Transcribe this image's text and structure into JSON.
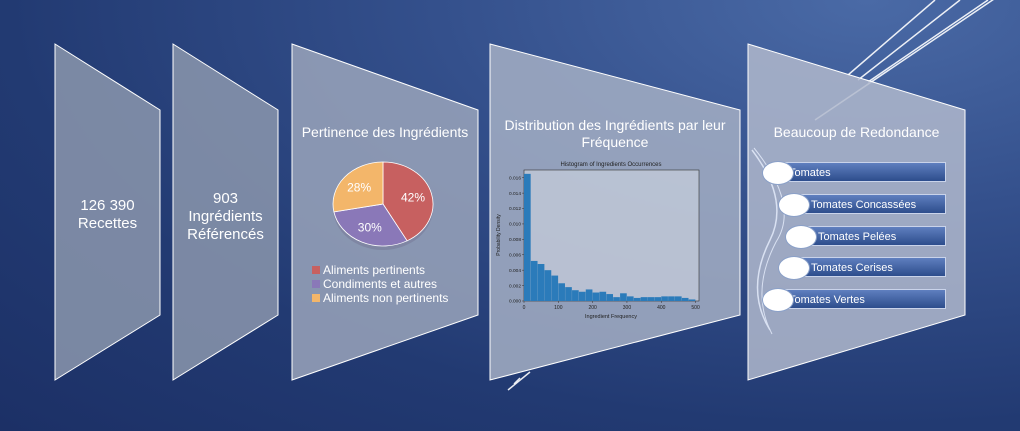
{
  "stages": [
    {
      "lines": [
        "126 390",
        "Recettes"
      ]
    },
    {
      "lines": [
        "903",
        "Ingrédients",
        "Référencés"
      ]
    },
    {
      "title": "Pertinence des Ingrédients"
    },
    {
      "title": "Distribution des Ingrédients par leur Fréquence"
    },
    {
      "title": "Beaucoup de Redondance"
    }
  ],
  "pie": {
    "slices": [
      {
        "label": "Aliments pertinents",
        "value": 42,
        "text": "42%",
        "color": "#c76060"
      },
      {
        "label": "Condiments et autres",
        "value": 30,
        "text": "30%",
        "color": "#8a78b8"
      },
      {
        "label": "Aliments non pertinents",
        "value": 28,
        "text": "28%",
        "color": "#f3b66a"
      }
    ]
  },
  "chart_data": {
    "type": "bar",
    "title": "Histogram of Ingredients Occurrences",
    "xlabel": "Ingredient Frequency",
    "ylabel": "Probability Density",
    "xlim": [
      0,
      510
    ],
    "ylim": [
      0,
      0.017
    ],
    "xticks": [
      "0",
      "100",
      "200",
      "300",
      "400",
      "500"
    ],
    "yticks": [
      "0.000",
      "0.002",
      "0.004",
      "0.006",
      "0.008",
      "0.010",
      "0.012",
      "0.014",
      "0.016"
    ],
    "bin_edges": [
      0,
      20,
      40,
      60,
      80,
      100,
      120,
      140,
      160,
      180,
      200,
      220,
      240,
      260,
      280,
      300,
      320,
      340,
      360,
      380,
      400,
      420,
      440,
      460,
      480,
      500
    ],
    "values": [
      0.0165,
      0.0052,
      0.0048,
      0.004,
      0.0033,
      0.0023,
      0.0018,
      0.0014,
      0.0012,
      0.0015,
      0.0011,
      0.0012,
      0.0009,
      0.0005,
      0.001,
      0.0006,
      0.0004,
      0.0005,
      0.0005,
      0.0005,
      0.0006,
      0.0006,
      0.0006,
      0.0004,
      0.0002
    ],
    "color": "#2b7bba"
  },
  "redondance": {
    "items": [
      "Tomates",
      "Tomates Concassées",
      "Tomates Pelées",
      "Tomates Cerises",
      "Tomates Vertes"
    ]
  }
}
